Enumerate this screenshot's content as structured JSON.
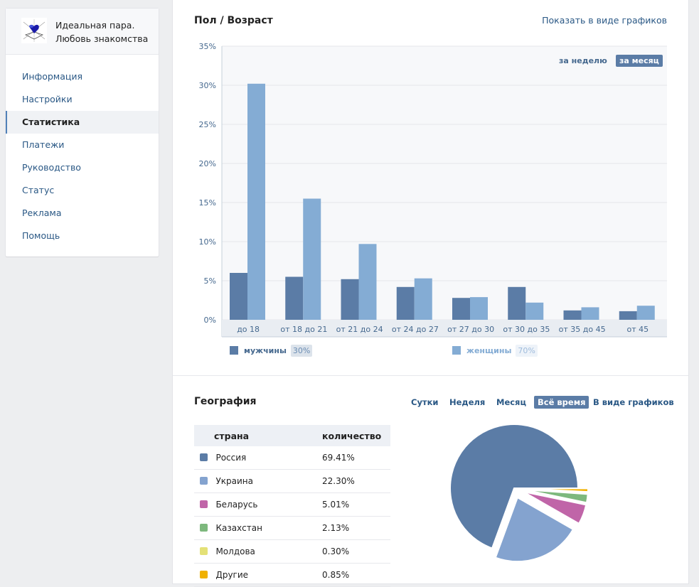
{
  "sidebar": {
    "title_line1": "Идеальная пара.",
    "title_line2": "Любовь знакомства",
    "items": [
      {
        "label": "Информация"
      },
      {
        "label": "Настройки"
      },
      {
        "label": "Статистика",
        "active": true
      },
      {
        "label": "Платежи"
      },
      {
        "label": "Руководство"
      },
      {
        "label": "Статус"
      },
      {
        "label": "Реклама"
      },
      {
        "label": "Помощь"
      }
    ]
  },
  "gender_age": {
    "title": "Пол / Возраст",
    "show_as_graphs": "Показать в виде графиков",
    "period_week": "за неделю",
    "period_month": "за месяц",
    "legend_men": "мужчины",
    "legend_men_pct": "30%",
    "legend_women": "женщины",
    "legend_women_pct": "70%"
  },
  "geography": {
    "title": "География",
    "tabs": [
      "Сутки",
      "Неделя",
      "Месяц",
      "Всё время",
      "В виде графиков"
    ],
    "selected_tab": "Всё время",
    "col_country": "страна",
    "col_count": "количество",
    "rows": [
      {
        "country": "Россия",
        "value": "69.41%",
        "color": "#5b7ca6"
      },
      {
        "country": "Украина",
        "value": "22.30%",
        "color": "#84a3cf"
      },
      {
        "country": "Беларусь",
        "value": "5.01%",
        "color": "#c065a8"
      },
      {
        "country": "Казахстан",
        "value": "2.13%",
        "color": "#7db87d"
      },
      {
        "country": "Молдова",
        "value": "0.30%",
        "color": "#e4e177"
      },
      {
        "country": "Другие",
        "value": "0.85%",
        "color": "#f0b100"
      }
    ]
  },
  "chart_data": [
    {
      "type": "bar",
      "categories": [
        "до 18",
        "от 18 до 21",
        "от 21 до 24",
        "от 24 до 27",
        "от 27 до 30",
        "от 30 до 35",
        "от 35 до 45",
        "от 45"
      ],
      "series": [
        {
          "name": "мужчины",
          "color": "#5b7ca6",
          "values": [
            6.0,
            5.5,
            5.2,
            4.2,
            2.8,
            4.2,
            1.2,
            1.1
          ]
        },
        {
          "name": "женщины",
          "color": "#84acd4",
          "values": [
            30.2,
            15.5,
            9.7,
            5.3,
            2.9,
            2.2,
            1.6,
            1.8
          ]
        }
      ],
      "ylim": [
        0,
        35
      ],
      "yticks": [
        "0%",
        "5%",
        "10%",
        "15%",
        "20%",
        "25%",
        "30%",
        "35%"
      ],
      "grid": true
    },
    {
      "type": "pie",
      "labels": [
        "Россия",
        "Украина",
        "Беларусь",
        "Казахстан",
        "Молдова",
        "Другие"
      ],
      "values": [
        69.41,
        22.3,
        5.01,
        2.13,
        0.3,
        0.85
      ],
      "colors": [
        "#5b7ca6",
        "#84a3cf",
        "#c065a8",
        "#7db87d",
        "#e4e177",
        "#f0b100"
      ]
    }
  ]
}
